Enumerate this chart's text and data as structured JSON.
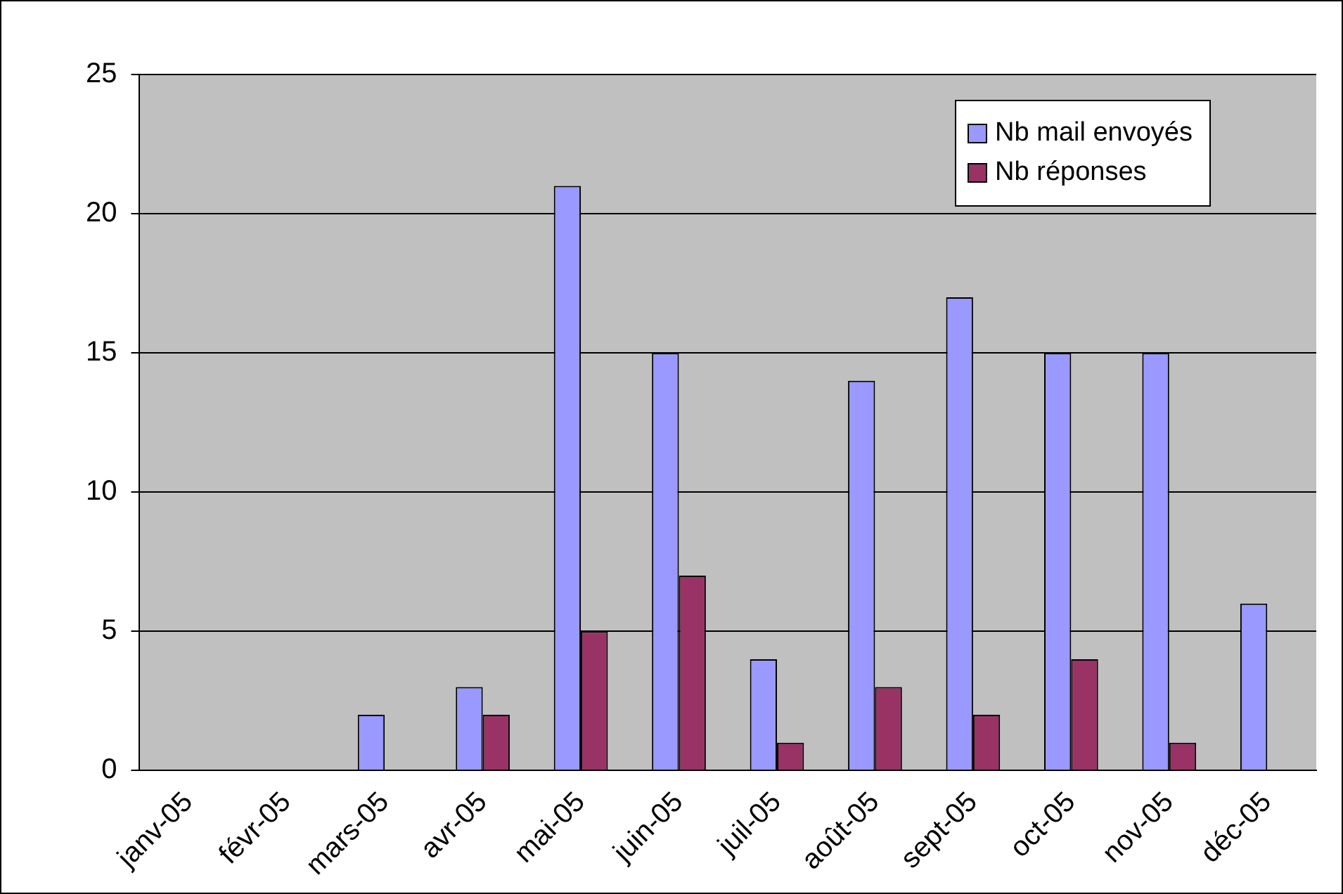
{
  "chart_data": {
    "type": "bar",
    "categories": [
      "janv-05",
      "févr-05",
      "mars-05",
      "avr-05",
      "mai-05",
      "juin-05",
      "juil-05",
      "août-05",
      "sept-05",
      "oct-05",
      "nov-05",
      "déc-05"
    ],
    "series": [
      {
        "name": "Nb mail envoyés",
        "color": "#9999ff",
        "values": [
          0,
          0,
          2,
          3,
          21,
          15,
          4,
          14,
          17,
          15,
          15,
          6
        ]
      },
      {
        "name": "Nb réponses",
        "color": "#993366",
        "values": [
          0,
          0,
          0,
          2,
          5,
          7,
          1,
          3,
          2,
          4,
          1,
          0
        ]
      }
    ],
    "ylim": [
      0,
      25
    ],
    "yticks": [
      0,
      5,
      10,
      15,
      20,
      25
    ],
    "grid": "y",
    "legend": "top right"
  }
}
